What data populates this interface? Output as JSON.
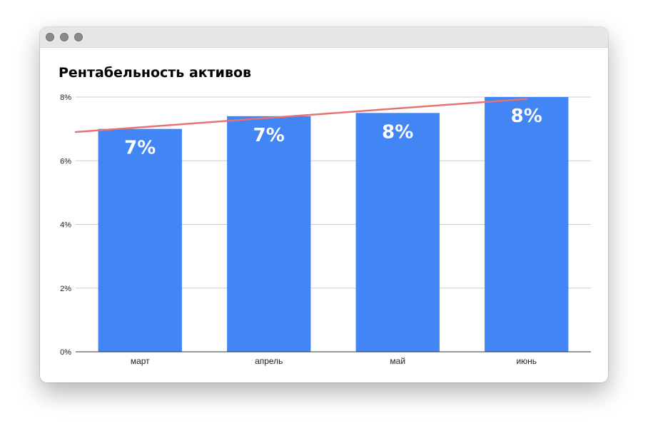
{
  "window": {
    "controls": [
      "close-button",
      "minimize-button",
      "zoom-button"
    ]
  },
  "chart_data": {
    "type": "bar",
    "title": "Рентабельность активов",
    "xlabel": "",
    "ylabel": "",
    "categories": [
      "март",
      "апрель",
      "май",
      "июнь"
    ],
    "values": [
      7.0,
      7.4,
      7.5,
      8.0
    ],
    "data_labels": [
      "7%",
      "7%",
      "8%",
      "8%"
    ],
    "ylim": [
      0,
      8
    ],
    "y_ticks": [
      0,
      2,
      4,
      6,
      8
    ],
    "y_tick_labels": [
      "0%",
      "2%",
      "4%",
      "6%",
      "8%"
    ],
    "grid": true,
    "legend": "none",
    "trendline": {
      "type": "linear",
      "color": "#e57373"
    },
    "colors": {
      "bar": "#4285f4",
      "trendline": "#e57373",
      "grid": "#cccccc",
      "axis": "#333333"
    }
  }
}
